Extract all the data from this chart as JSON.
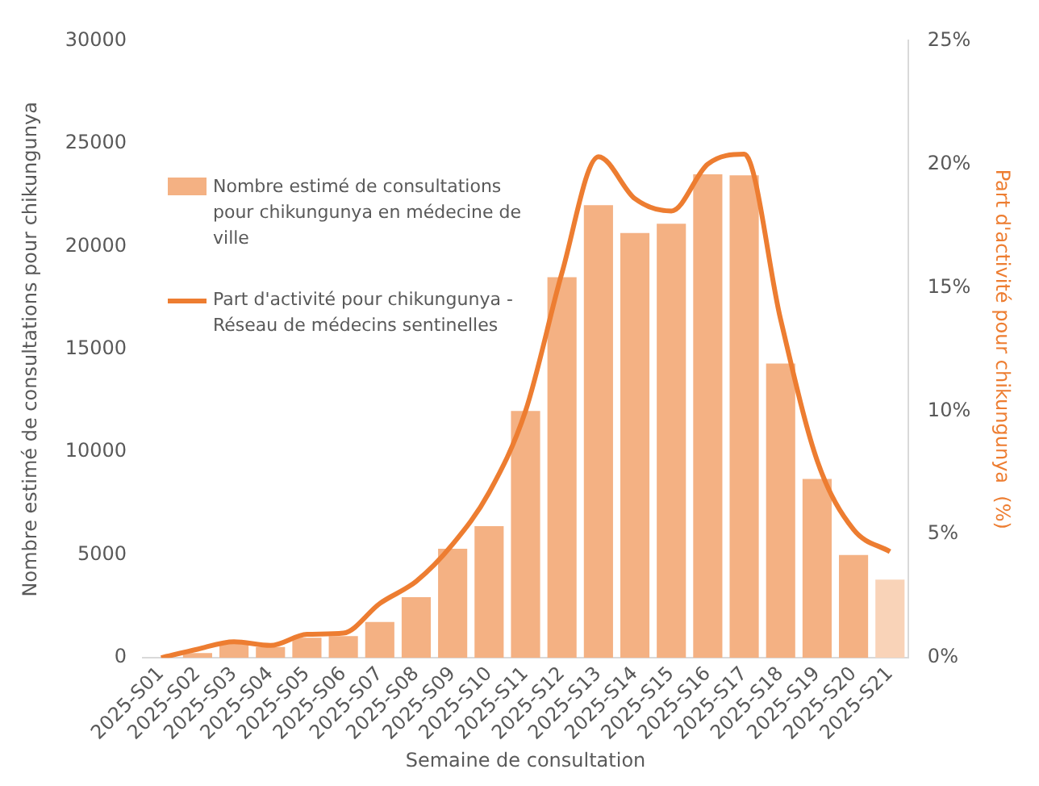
{
  "chart_data": {
    "type": "bar",
    "xlabel": "Semaine de consultation",
    "ylabel": "Nombre estimé de consultations pour chikungunya",
    "y2label": "Part d'activité pour chikungunya  (%)",
    "categories": [
      "2025-S01",
      "2025-S02",
      "2025-S03",
      "2025-S04",
      "2025-S05",
      "2025-S06",
      "2025-S07",
      "2025-S08",
      "2025-S09",
      "2025-S10",
      "2025-S11",
      "2025-S12",
      "2025-S13",
      "2025-S14",
      "2025-S15",
      "2025-S16",
      "2025-S17",
      "2025-S18",
      "2025-S19",
      "2025-S20",
      "2025-S21"
    ],
    "series": [
      {
        "name": "Nombre estimé de consultations pour chikungunya en médecine de ville",
        "color": "#f4b183",
        "colors": [
          "#f4b183",
          "#f4b183",
          "#f4b183",
          "#f4b183",
          "#f4b183",
          "#f4b183",
          "#f4b183",
          "#f4b183",
          "#f4b183",
          "#f4b183",
          "#f4b183",
          "#f4b183",
          "#f4b183",
          "#f4b183",
          "#f4b183",
          "#f4b183",
          "#f4b183",
          "#f4b183",
          "#f4b183",
          "#f4b183",
          "#f9d3b8"
        ],
        "values": [
          0,
          230,
          700,
          530,
          980,
          1060,
          1740,
          2950,
          5300,
          6400,
          12000,
          18500,
          22000,
          20650,
          21100,
          23500,
          23450,
          14300,
          8700,
          5000,
          3800
        ]
      },
      {
        "name": "Part d'activité pour chikungunya - Réseau de médecins sentinelles",
        "type": "line",
        "axis": "y2",
        "color": "#ed7d31",
        "values": [
          0,
          0.35,
          0.65,
          0.5,
          0.95,
          1.0,
          2.2,
          3.1,
          4.6,
          6.7,
          10.0,
          15.6,
          20.3,
          18.6,
          18.1,
          20.0,
          20.4,
          13.7,
          8.0,
          5.2,
          4.3
        ]
      }
    ],
    "ylim": [
      0,
      30000
    ],
    "yticks": [
      0,
      5000,
      10000,
      15000,
      20000,
      25000,
      30000
    ],
    "y2lim": [
      0,
      25
    ],
    "y2ticks": [
      {
        "value": 0,
        "label": "0%"
      },
      {
        "value": 5,
        "label": "5%"
      },
      {
        "value": 10,
        "label": "10%"
      },
      {
        "value": 15,
        "label": "15%"
      },
      {
        "value": 20,
        "label": "20%"
      },
      {
        "value": 25,
        "label": "25%"
      }
    ],
    "grid": false,
    "legend": "top left",
    "marker": "none",
    "line_style": "solid"
  }
}
